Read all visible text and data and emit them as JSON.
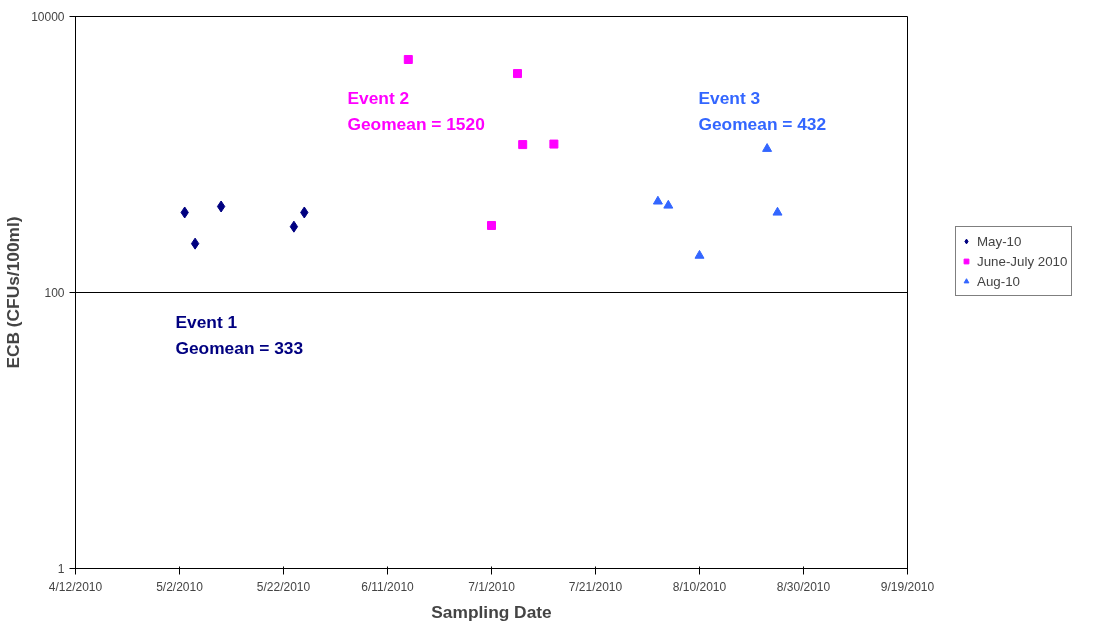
{
  "chart_data": {
    "type": "scatter",
    "xlabel": "Sampling Date",
    "ylabel": "ECB (CFUs/100ml)",
    "log": "y",
    "grid": "y",
    "legend": "right",
    "xlim": [
      "2010-04-12",
      "2010-09-19"
    ],
    "xticks": [
      {
        "value": "2010-04-12",
        "label": "4/12/2010"
      },
      {
        "value": "2010-05-02",
        "label": "5/2/2010"
      },
      {
        "value": "2010-05-22",
        "label": "5/22/2010"
      },
      {
        "value": "2010-06-11",
        "label": "6/11/2010"
      },
      {
        "value": "2010-07-01",
        "label": "7/1/2010"
      },
      {
        "value": "2010-07-21",
        "label": "7/21/2010"
      },
      {
        "value": "2010-08-10",
        "label": "8/10/2010"
      },
      {
        "value": "2010-08-30",
        "label": "8/30/2010"
      },
      {
        "value": "2010-09-19",
        "label": "9/19/2010"
      }
    ],
    "ylim": [
      1,
      10000
    ],
    "yticks": [
      1,
      100,
      10000
    ],
    "series": [
      {
        "name": "May-10",
        "color": "#000080",
        "marker": "diamond",
        "x": [
          "2010-05-03",
          "2010-05-05",
          "2010-05-10",
          "2010-05-24",
          "2010-05-26"
        ],
        "values": [
          380,
          226,
          420,
          300,
          380
        ]
      },
      {
        "name": "June-July 2010",
        "color": "#ff00ff",
        "marker": "square",
        "x": [
          "2010-06-15",
          "2010-07-01",
          "2010-07-06",
          "2010-07-07",
          "2010-07-13"
        ],
        "values": [
          4880,
          306,
          3860,
          1180,
          1190
        ]
      },
      {
        "name": "Aug-10",
        "color": "#3366ff",
        "marker": "triangle",
        "x": [
          "2010-08-02",
          "2010-08-04",
          "2010-08-10",
          "2010-08-23",
          "2010-08-25"
        ],
        "values": [
          457,
          427,
          185,
          1100,
          380
        ]
      }
    ],
    "annotations": [
      "Event 1\nGeomean = 333",
      "Event 2\nGeomean = 1520",
      "Event 3\nGeomean = 432"
    ]
  }
}
